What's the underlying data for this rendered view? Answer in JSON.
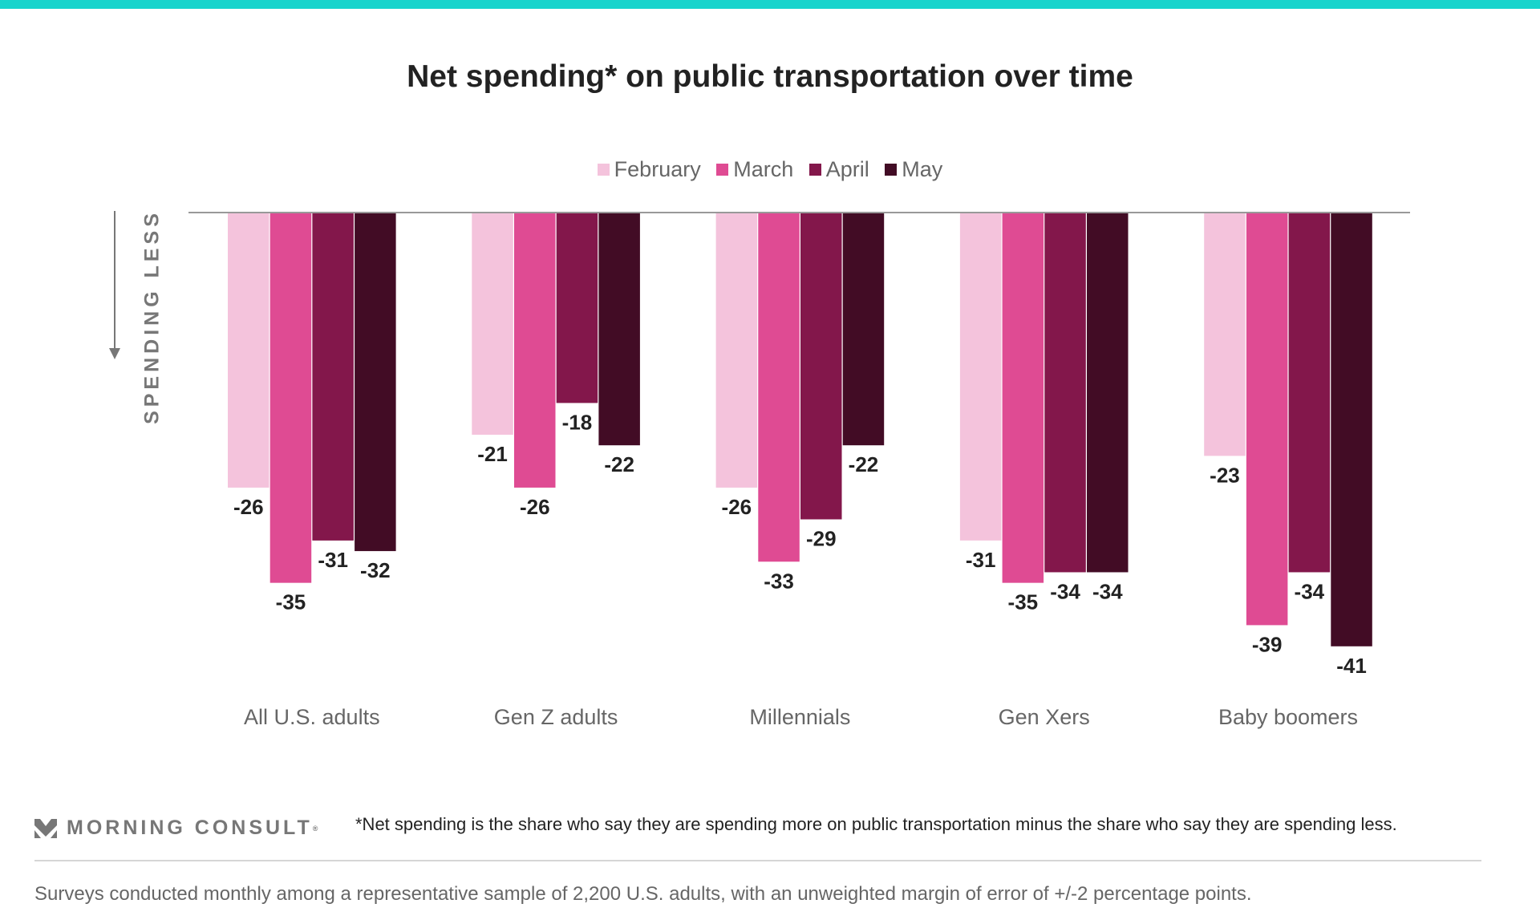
{
  "colors": {
    "top_bar": "#17d4cc",
    "February": "#f4c3dc",
    "March": "#df4b93",
    "April": "#83174b",
    "May": "#420c25",
    "axis": "#999999"
  },
  "chart_data": {
    "type": "bar",
    "title": "Net spending* on public transportation over time",
    "ylabel": "SPENDING LESS",
    "categories": [
      "All U.S. adults",
      "Gen Z adults",
      "Millennials",
      "Gen Xers",
      "Baby boomers"
    ],
    "series": [
      {
        "name": "February",
        "values": [
          -26,
          -21,
          -26,
          -31,
          -23
        ]
      },
      {
        "name": "March",
        "values": [
          -35,
          -26,
          -33,
          -35,
          -39
        ]
      },
      {
        "name": "April",
        "values": [
          -31,
          -18,
          -29,
          -34,
          -34
        ]
      },
      {
        "name": "May",
        "values": [
          -32,
          -22,
          -22,
          -34,
          -41
        ]
      }
    ],
    "ylim": [
      -45,
      0
    ],
    "grid": false,
    "legend": "top-center",
    "data_labels": true
  },
  "footer": {
    "logo_text": "MORNING CONSULT",
    "footnote": "*Net spending is the share who say they are spending more on public transportation minus the share who say they are spending less.",
    "source": "Surveys conducted monthly among a representative sample of 2,200 U.S. adults, with an unweighted margin of error of +/-2 percentage points."
  }
}
